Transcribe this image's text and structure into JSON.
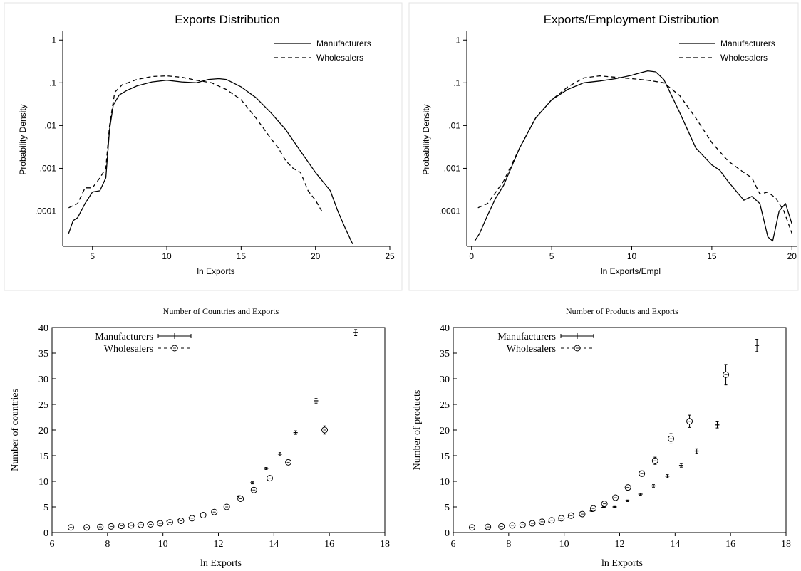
{
  "chart_data": [
    {
      "type": "line",
      "title": "Exports Distribution",
      "xlabel": "ln Exports",
      "ylabel": "Probability Density",
      "xlim": [
        3,
        25
      ],
      "ylim": [
        1.5e-05,
        1.6
      ],
      "yscale": "log",
      "xticks": [
        5,
        10,
        15,
        20,
        25
      ],
      "yticks": [
        1,
        0.1,
        0.01,
        0.001,
        0.0001
      ],
      "ytick_labels": [
        "1",
        ".1",
        ".01",
        ".001",
        ".0001"
      ],
      "legend": "top-right",
      "series": [
        {
          "name": "Manufacturers",
          "style": "solid",
          "x": [
            3.4,
            3.7,
            4.0,
            4.5,
            5.0,
            5.5,
            5.9,
            6.15,
            6.4,
            6.8,
            7.3,
            8.0,
            9.0,
            10.0,
            11.0,
            12.0,
            12.8,
            13.5,
            14.0,
            15.0,
            16.0,
            17.0,
            18.0,
            19.0,
            20.0,
            21.0,
            21.5,
            22.0,
            22.5
          ],
          "y": [
            3e-05,
            6e-05,
            7e-05,
            0.00015,
            0.00028,
            0.0003,
            0.0006,
            0.008,
            0.03,
            0.052,
            0.066,
            0.085,
            0.105,
            0.115,
            0.105,
            0.1,
            0.12,
            0.125,
            0.12,
            0.08,
            0.045,
            0.02,
            0.008,
            0.0025,
            0.0008,
            0.0003,
            0.0001,
            4e-05,
            1.7e-05
          ]
        },
        {
          "name": "Wholesalers",
          "style": "dashed",
          "x": [
            3.4,
            4.0,
            4.5,
            5.0,
            5.5,
            5.9,
            6.15,
            6.5,
            7.0,
            8.0,
            9.0,
            10.0,
            11.0,
            12.0,
            13.0,
            14.0,
            15.0,
            16.0,
            17.0,
            17.5,
            18.0,
            18.5,
            19.0,
            19.5,
            20.0,
            20.5
          ],
          "y": [
            0.00012,
            0.00015,
            0.00035,
            0.00035,
            0.0006,
            0.001,
            0.01,
            0.06,
            0.09,
            0.12,
            0.14,
            0.145,
            0.135,
            0.115,
            0.1,
            0.07,
            0.04,
            0.015,
            0.005,
            0.003,
            0.0015,
            0.001,
            0.0008,
            0.0003,
            0.00018,
            9e-05
          ]
        }
      ]
    },
    {
      "type": "line",
      "title": "Exports/Employment Distribution",
      "xlabel": "ln Exports/Empl",
      "ylabel": "Probability Density",
      "xlim": [
        -0.3,
        20.3
      ],
      "ylim": [
        1.5e-05,
        1.6
      ],
      "yscale": "log",
      "xticks": [
        0,
        5,
        10,
        15,
        20
      ],
      "yticks": [
        1,
        0.1,
        0.01,
        0.001,
        0.0001
      ],
      "ytick_labels": [
        "1",
        ".1",
        ".01",
        ".001",
        ".0001"
      ],
      "legend": "top-right",
      "series": [
        {
          "name": "Manufacturers",
          "style": "solid",
          "x": [
            0.2,
            0.5,
            1.0,
            1.5,
            2.0,
            3.0,
            4.0,
            5.0,
            6.0,
            7.0,
            8.0,
            9.0,
            10.0,
            10.5,
            11.0,
            11.5,
            12.0,
            13.0,
            14.0,
            15.0,
            15.5,
            16.0,
            16.5,
            17.0,
            17.5,
            18.0,
            18.5,
            18.8,
            19.2,
            19.6,
            20.0
          ],
          "y": [
            2e-05,
            3e-05,
            8e-05,
            0.0002,
            0.0004,
            0.003,
            0.015,
            0.04,
            0.07,
            0.1,
            0.11,
            0.125,
            0.15,
            0.17,
            0.19,
            0.18,
            0.12,
            0.02,
            0.003,
            0.0012,
            0.0009,
            0.0005,
            0.0003,
            0.00018,
            0.00022,
            0.00015,
            2.5e-05,
            2e-05,
            0.0001,
            0.00015,
            5e-05
          ]
        },
        {
          "name": "Wholesalers",
          "style": "dashed",
          "x": [
            0.4,
            1.0,
            2.0,
            3.0,
            4.0,
            5.0,
            6.0,
            7.0,
            8.0,
            9.0,
            10.0,
            11.0,
            12.0,
            13.0,
            14.0,
            15.0,
            16.0,
            17.0,
            17.5,
            18.0,
            18.5,
            19.0,
            19.5,
            20.0
          ],
          "y": [
            0.00012,
            0.00015,
            0.0005,
            0.003,
            0.015,
            0.04,
            0.08,
            0.13,
            0.145,
            0.135,
            0.125,
            0.115,
            0.1,
            0.05,
            0.015,
            0.004,
            0.0015,
            0.0008,
            0.0006,
            0.00025,
            0.00028,
            0.0002,
            0.0001,
            3e-05
          ]
        }
      ]
    },
    {
      "type": "scatter",
      "title": "Number of Countries and Exports",
      "xlabel": "ln Exports",
      "ylabel": "Number of countries",
      "xlim": [
        6,
        18
      ],
      "ylim": [
        0,
        40
      ],
      "xticks": [
        6,
        8,
        10,
        12,
        14,
        16,
        18
      ],
      "yticks": [
        0,
        5,
        10,
        15,
        20,
        25,
        30,
        35,
        40
      ],
      "legend": "top-left",
      "series": [
        {
          "name": "Manufacturers",
          "marker": "plus",
          "x": [
            6.65,
            7.24,
            7.73,
            8.12,
            8.48,
            8.82,
            9.15,
            9.5,
            9.85,
            10.2,
            10.6,
            11.0,
            11.42,
            11.82,
            12.28,
            12.75,
            13.22,
            13.72,
            14.22,
            14.78,
            15.52,
            16.95
          ],
          "y": [
            1.0,
            1.1,
            1.1,
            1.2,
            1.3,
            1.4,
            1.5,
            1.7,
            1.9,
            2.2,
            2.5,
            2.9,
            3.4,
            4.0,
            5.2,
            7.0,
            9.7,
            12.5,
            15.3,
            19.5,
            25.7,
            39.0
          ],
          "err": [
            0.05,
            0.05,
            0.05,
            0.05,
            0.05,
            0.05,
            0.05,
            0.05,
            0.05,
            0.05,
            0.05,
            0.05,
            0.1,
            0.1,
            0.15,
            0.2,
            0.2,
            0.2,
            0.3,
            0.35,
            0.45,
            0.6
          ]
        },
        {
          "name": "Wholesalers",
          "marker": "circle",
          "x": [
            6.68,
            7.25,
            7.74,
            8.13,
            8.5,
            8.85,
            9.2,
            9.55,
            9.9,
            10.25,
            10.65,
            11.05,
            11.45,
            11.85,
            12.3,
            12.8,
            13.28,
            13.85,
            14.52,
            15.83
          ],
          "y": [
            1.0,
            1.0,
            1.1,
            1.2,
            1.3,
            1.4,
            1.5,
            1.6,
            1.8,
            2.0,
            2.3,
            2.8,
            3.4,
            4.0,
            5.0,
            6.6,
            8.3,
            10.6,
            13.7,
            20.0
          ],
          "err": [
            0.05,
            0.05,
            0.05,
            0.05,
            0.05,
            0.05,
            0.05,
            0.05,
            0.05,
            0.05,
            0.05,
            0.05,
            0.1,
            0.1,
            0.15,
            0.2,
            0.25,
            0.3,
            0.4,
            0.8
          ]
        }
      ]
    },
    {
      "type": "scatter",
      "title": "Number of Products and Exports",
      "xlabel": "ln Exports",
      "ylabel": "Number of products",
      "xlim": [
        6,
        18
      ],
      "ylim": [
        0,
        40
      ],
      "xticks": [
        6,
        8,
        10,
        12,
        14,
        16,
        18
      ],
      "yticks": [
        0,
        5,
        10,
        15,
        20,
        25,
        30,
        35,
        40
      ],
      "legend": "top-left",
      "series": [
        {
          "name": "Manufacturers",
          "marker": "plus",
          "x": [
            6.65,
            7.24,
            7.73,
            8.12,
            8.48,
            8.82,
            9.15,
            9.5,
            9.85,
            10.2,
            10.6,
            11.0,
            11.42,
            11.82,
            12.28,
            12.75,
            13.22,
            13.72,
            14.22,
            14.78,
            15.52,
            16.95
          ],
          "y": [
            1.0,
            1.1,
            1.2,
            1.4,
            1.5,
            1.7,
            1.9,
            2.1,
            2.4,
            2.9,
            3.4,
            4.2,
            4.9,
            5.0,
            6.2,
            7.5,
            9.1,
            11.0,
            13.1,
            15.9,
            21.0,
            36.5
          ],
          "err": [
            0.05,
            0.05,
            0.05,
            0.05,
            0.05,
            0.05,
            0.05,
            0.05,
            0.05,
            0.05,
            0.1,
            0.1,
            0.1,
            0.1,
            0.15,
            0.2,
            0.25,
            0.3,
            0.35,
            0.45,
            0.6,
            1.2
          ]
        },
        {
          "name": "Wholesalers",
          "marker": "circle",
          "x": [
            6.68,
            7.25,
            7.74,
            8.13,
            8.5,
            8.85,
            9.2,
            9.55,
            9.9,
            10.25,
            10.65,
            11.05,
            11.45,
            11.85,
            12.3,
            12.8,
            13.28,
            13.85,
            14.52,
            15.83
          ],
          "y": [
            1.0,
            1.1,
            1.2,
            1.4,
            1.5,
            1.8,
            2.1,
            2.4,
            2.8,
            3.3,
            3.6,
            4.7,
            5.6,
            6.8,
            8.8,
            11.5,
            14.0,
            18.3,
            21.7,
            30.8
          ],
          "err": [
            0.05,
            0.05,
            0.05,
            0.05,
            0.05,
            0.05,
            0.05,
            0.05,
            0.1,
            0.1,
            0.15,
            0.2,
            0.25,
            0.3,
            0.4,
            0.55,
            0.7,
            1.0,
            1.2,
            2.0
          ]
        }
      ]
    }
  ]
}
